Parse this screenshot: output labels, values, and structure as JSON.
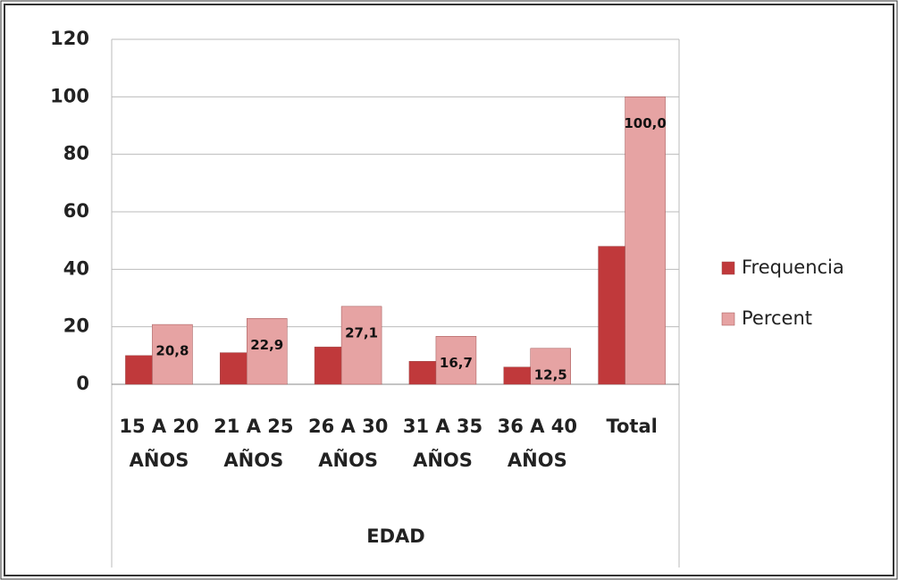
{
  "chart_data": {
    "type": "bar",
    "categories": [
      "15 A 20 AÑOS",
      "21 A 25 AÑOS",
      "26 A 30 AÑOS",
      "31 A 35 AÑOS",
      "36 A 40 AÑOS",
      "Total"
    ],
    "x_label": "EDAD",
    "series": [
      {
        "name": "Frequencia",
        "color": "#c0393b",
        "values": [
          10,
          11,
          13,
          8,
          6,
          48
        ]
      },
      {
        "name": "Percent",
        "color": "#e6a3a3",
        "values": [
          20.8,
          22.9,
          27.1,
          16.7,
          12.5,
          100.0
        ],
        "value_labels": [
          "20,8",
          "22,9",
          "27,1",
          "16,7",
          "12,5",
          "100,0"
        ]
      }
    ],
    "ylim": [
      0,
      120
    ],
    "yticks": [
      0,
      20,
      40,
      60,
      80,
      100,
      120
    ],
    "grid": true,
    "legend": "right"
  }
}
